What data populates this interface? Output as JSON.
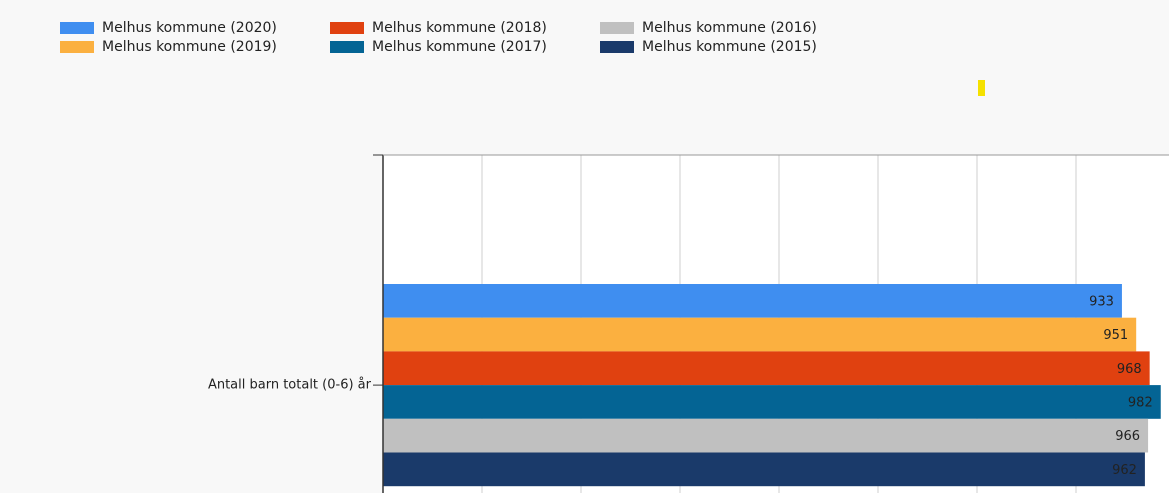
{
  "chart_data": {
    "type": "barh",
    "categories": [
      "Antall barn totalt (0-6) år"
    ],
    "series": [
      {
        "name": "Melhus kommune (2020)",
        "color": "#3f8ef0",
        "values": [
          933
        ]
      },
      {
        "name": "Melhus kommune (2019)",
        "color": "#fbb040",
        "values": [
          951
        ]
      },
      {
        "name": "Melhus kommune (2018)",
        "color": "#e04110",
        "values": [
          968
        ]
      },
      {
        "name": "Melhus kommune (2017)",
        "color": "#046494",
        "values": [
          982
        ]
      },
      {
        "name": "Melhus kommune (2016)",
        "color": "#c0c0c0",
        "values": [
          966
        ]
      },
      {
        "name": "Melhus kommune (2015)",
        "color": "#1a3a6a",
        "values": [
          962
        ]
      }
    ],
    "xlim": [
      0,
      1000
    ],
    "xticks": [
      0,
      125,
      250,
      375,
      500,
      625,
      750,
      875,
      1000
    ],
    "grid": true
  }
}
